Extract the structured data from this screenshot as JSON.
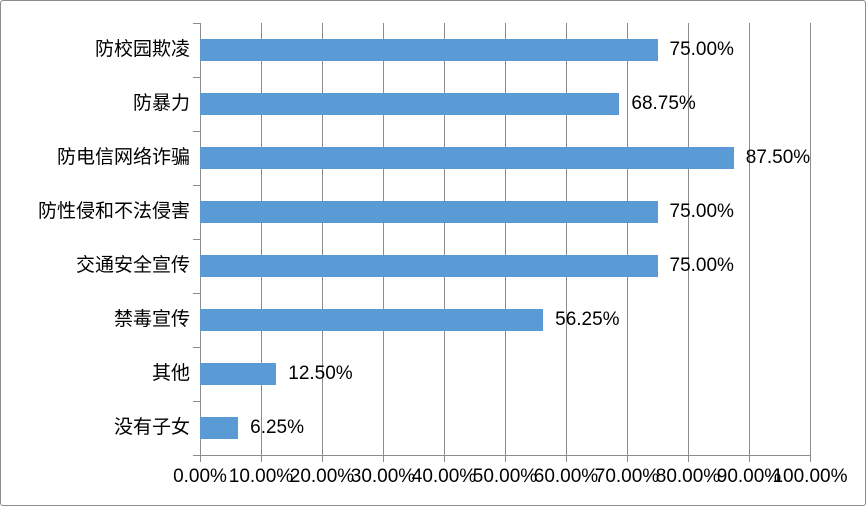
{
  "chart_data": {
    "type": "bar",
    "orientation": "horizontal",
    "categories": [
      "防校园欺凌",
      "防暴力",
      "防电信网络诈骗",
      "防性侵和不法侵害",
      "交通安全宣传",
      "禁毒宣传",
      "其他",
      "没有子女"
    ],
    "values": [
      75.0,
      68.75,
      87.5,
      75.0,
      75.0,
      56.25,
      12.5,
      6.25
    ],
    "data_labels": [
      "75.00%",
      "68.75%",
      "87.50%",
      "75.00%",
      "75.00%",
      "56.25%",
      "12.50%",
      "6.25%"
    ],
    "x_tick_labels": [
      "0.00%",
      "10.00%",
      "20.00%",
      "30.00%",
      "40.00%",
      "50.00%",
      "60.00%",
      "70.00%",
      "80.00%",
      "90.00%",
      "100.00%"
    ],
    "xlim": [
      0,
      100
    ],
    "grid": "vertical-major",
    "legend": "none",
    "colors": {
      "bar": "#5b9bd5",
      "gridline": "#8c8c8c",
      "axis": "#8c8c8c",
      "text": "#000000",
      "background": "#ffffff",
      "border": "#8c8c8c"
    }
  }
}
